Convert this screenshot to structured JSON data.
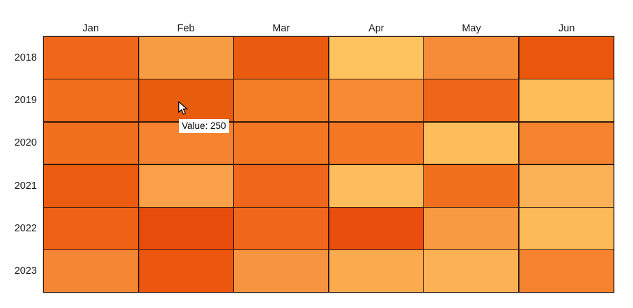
{
  "chart_data": {
    "type": "heatmap",
    "title": "",
    "x_labels": [
      "Jan",
      "Feb",
      "Mar",
      "Apr",
      "May",
      "Jun"
    ],
    "y_labels": [
      "2018",
      "2019",
      "2020",
      "2021",
      "2022",
      "2023"
    ],
    "cell_colors": [
      [
        "#F0671C",
        "#F89C44",
        "#EA5B10",
        "#FDC35E",
        "#F68C38",
        "#E9560C"
      ],
      [
        "#F26F1E",
        "#E85C0E",
        "#F47E28",
        "#F68B34",
        "#EF6518",
        "#FDBE5A"
      ],
      [
        "#F1701E",
        "#F5832F",
        "#F37622",
        "#F47824",
        "#FDBD5A",
        "#F5832E"
      ],
      [
        "#EC5C10",
        "#F9A048",
        "#F0661A",
        "#FDBD5C",
        "#F1701E",
        "#FBB155"
      ],
      [
        "#EF6216",
        "#E84C0A",
        "#F0661A",
        "#E94E0C",
        "#F89A42",
        "#FCBB58"
      ],
      [
        "#F58634",
        "#EC560E",
        "#F79440",
        "#FBAA4E",
        "#FCB254",
        "#F5822E"
      ]
    ],
    "values_estimated": [
      [
        230,
        150,
        260,
        95,
        175,
        270
      ],
      [
        220,
        250,
        200,
        180,
        240,
        105
      ],
      [
        220,
        195,
        205,
        200,
        110,
        195
      ],
      [
        255,
        145,
        240,
        110,
        220,
        120
      ],
      [
        245,
        285,
        240,
        280,
        155,
        115
      ],
      [
        185,
        265,
        170,
        140,
        130,
        195
      ]
    ],
    "hovered_cell": {
      "row": "2019",
      "column": "Feb",
      "value": 250
    },
    "layout": {
      "legend": "none",
      "grid_on": true,
      "color_scale": "light orange (low) to dark red-orange (high)"
    }
  },
  "tooltip": {
    "text": "Value: 250"
  },
  "cursor": {
    "icon": "arrow-pointer"
  },
  "colors": {
    "cell_border": "#33190A",
    "outer_outline": "#C9C9C9",
    "label_text": "#1A1A1A",
    "tooltip_bg": "#FFFFFF",
    "tooltip_text": "#000000",
    "background": "#FFFFFF"
  }
}
